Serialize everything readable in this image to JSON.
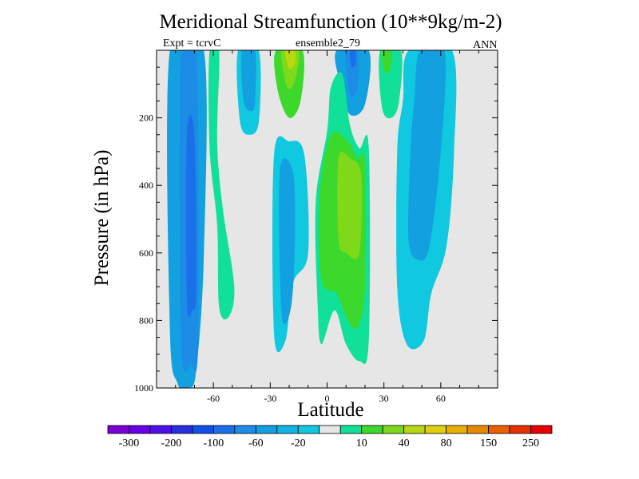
{
  "chart_data": {
    "type": "contour-fill",
    "title": "Meridional Streamfunction (10**9kg/m-2)",
    "left_label": "Expt = tcrvC",
    "center_label": "ensemble2_79",
    "right_label": "ANN",
    "xlabel": "Latitude",
    "ylabel": "Pressure (in hPa)",
    "xlim": [
      -90,
      90
    ],
    "ylim": [
      1000,
      0
    ],
    "x_ticks": [
      -60,
      -30,
      0,
      30,
      60
    ],
    "y_ticks": [
      200,
      400,
      600,
      800,
      1000
    ],
    "colorbar": {
      "labels": [
        "-300",
        "-200",
        "-100",
        "-60",
        "-20",
        "10",
        "40",
        "80",
        "150",
        "250"
      ],
      "colors": [
        "#7a00d6",
        "#6a00e6",
        "#4e10e8",
        "#2830e0",
        "#1250e8",
        "#1a70e8",
        "#1c8ce6",
        "#12a0e0",
        "#12b4e4",
        "#10c8e0",
        "#e6e6e6",
        "#10e098",
        "#3cd82c",
        "#80d81a",
        "#b8d810",
        "#e0d010",
        "#e8b000",
        "#e88a00",
        "#e86000",
        "#e83000",
        "#e60000"
      ]
    },
    "regions": [
      {
        "name": "sh-polar-cell",
        "level": "-60",
        "color": "#12a0e0",
        "points": [
          [
            -83,
            1
          ],
          [
            -83,
            820
          ],
          [
            -79,
            985
          ],
          [
            -73,
            1000
          ],
          [
            -69,
            945
          ],
          [
            -65,
            600
          ],
          [
            -65,
            1
          ]
        ]
      },
      {
        "name": "sh-polar-cell-core",
        "level": "-100",
        "color": "#1c8ce6",
        "points": [
          [
            -77,
            1
          ],
          [
            -77,
            860
          ],
          [
            -72,
            930
          ],
          [
            -68,
            860
          ],
          [
            -69,
            1
          ]
        ]
      },
      {
        "name": "sh-polar-cell-max",
        "level": "-150",
        "color": "#1a70e8",
        "points": [
          [
            -74,
            250
          ],
          [
            -74,
            740
          ],
          [
            -71,
            770
          ],
          [
            -69,
            700
          ],
          [
            -70,
            250
          ]
        ]
      },
      {
        "name": "sh-ferrel-cell",
        "level": "10",
        "color": "#10e098",
        "points": [
          [
            -62,
            1
          ],
          [
            -62,
            290
          ],
          [
            -58,
            520
          ],
          [
            -57,
            760
          ],
          [
            -52,
            790
          ],
          [
            -49,
            700
          ],
          [
            -55,
            470
          ],
          [
            -58,
            270
          ],
          [
            -57,
            1
          ]
        ]
      },
      {
        "name": "sh-upper-neg",
        "level": "-20",
        "color": "#10c8e0",
        "points": [
          [
            -47,
            1
          ],
          [
            -46,
            210
          ],
          [
            -41,
            250
          ],
          [
            -36,
            210
          ],
          [
            -36,
            1
          ]
        ]
      },
      {
        "name": "sh-upper-neg-core",
        "level": "-60",
        "color": "#12a0e0",
        "points": [
          [
            -45,
            1
          ],
          [
            -44,
            150
          ],
          [
            -40,
            180
          ],
          [
            -38,
            150
          ],
          [
            -38,
            1
          ]
        ]
      },
      {
        "name": "upper-pos-cell",
        "level": "40",
        "color": "#3cd82c",
        "points": [
          [
            -27,
            1
          ],
          [
            -26,
            120
          ],
          [
            -20,
            200
          ],
          [
            -14,
            150
          ],
          [
            -13,
            1
          ]
        ]
      },
      {
        "name": "upper-pos-cell-core",
        "level": "80",
        "color": "#80d81a",
        "points": [
          [
            -24,
            1
          ],
          [
            -21,
            110
          ],
          [
            -17,
            90
          ],
          [
            -15,
            1
          ]
        ]
      },
      {
        "name": "upper-pos-cell-max",
        "level": "150",
        "color": "#b8d810",
        "points": [
          [
            -22,
            1
          ],
          [
            -20,
            55
          ],
          [
            -17,
            40
          ],
          [
            -17,
            1
          ]
        ]
      },
      {
        "name": "tropical-neg-cell",
        "level": "-20",
        "color": "#10c8e0",
        "points": [
          [
            -28,
            310
          ],
          [
            -28,
            840
          ],
          [
            -22,
            860
          ],
          [
            -18,
            690
          ],
          [
            -10,
            600
          ],
          [
            -12,
            310
          ],
          [
            -20,
            270
          ]
        ]
      },
      {
        "name": "tropical-neg-cell-core",
        "level": "-60",
        "color": "#12a0e0",
        "points": [
          [
            -25,
            360
          ],
          [
            -24,
            780
          ],
          [
            -19,
            760
          ],
          [
            -17,
            560
          ],
          [
            -18,
            360
          ]
        ]
      },
      {
        "name": "nh-upper-neg",
        "level": "-60",
        "color": "#12a0e0",
        "points": [
          [
            5,
            1
          ],
          [
            7,
            100
          ],
          [
            12,
            190
          ],
          [
            20,
            160
          ],
          [
            22,
            1
          ]
        ]
      },
      {
        "name": "nh-upper-neg-core",
        "level": "-100",
        "color": "#1c8ce6",
        "points": [
          [
            10,
            1
          ],
          [
            12,
            130
          ],
          [
            16,
            110
          ],
          [
            16,
            1
          ]
        ]
      },
      {
        "name": "nh-upper-neg-max",
        "level": "-150",
        "color": "#1a70e8",
        "points": [
          [
            12,
            1
          ],
          [
            13,
            50
          ],
          [
            15,
            40
          ],
          [
            15,
            1
          ]
        ]
      },
      {
        "name": "nh-hadley-cell",
        "level": "10",
        "color": "#10e098",
        "points": [
          [
            0,
            240
          ],
          [
            -6,
            450
          ],
          [
            -5,
            750
          ],
          [
            -3,
            870
          ],
          [
            4,
            770
          ],
          [
            10,
            870
          ],
          [
            17,
            920
          ],
          [
            22,
            860
          ],
          [
            22,
            290
          ],
          [
            17,
            290
          ],
          [
            12,
            220
          ],
          [
            8,
            70
          ],
          [
            2,
            110
          ]
        ]
      },
      {
        "name": "nh-hadley-cell-core",
        "level": "40",
        "color": "#3cd82c",
        "points": [
          [
            2,
            250
          ],
          [
            -4,
            430
          ],
          [
            -3,
            680
          ],
          [
            5,
            720
          ],
          [
            11,
            800
          ],
          [
            16,
            820
          ],
          [
            20,
            700
          ],
          [
            20,
            330
          ],
          [
            16,
            320
          ],
          [
            11,
            270
          ]
        ]
      },
      {
        "name": "nh-hadley-cell-max",
        "level": "80",
        "color": "#80d81a",
        "points": [
          [
            6,
            320
          ],
          [
            6,
            560
          ],
          [
            10,
            600
          ],
          [
            17,
            600
          ],
          [
            18,
            370
          ],
          [
            12,
            320
          ]
        ]
      },
      {
        "name": "nh-upper-pos",
        "level": "10",
        "color": "#10e098",
        "points": [
          [
            28,
            1
          ],
          [
            29,
            170
          ],
          [
            34,
            200
          ],
          [
            38,
            150
          ],
          [
            39,
            1
          ]
        ]
      },
      {
        "name": "nh-upper-pos-core",
        "level": "40",
        "color": "#3cd82c",
        "points": [
          [
            29,
            1
          ],
          [
            30,
            60
          ],
          [
            33,
            60
          ],
          [
            34,
            1
          ]
        ]
      },
      {
        "name": "nh-ferrel-cell",
        "level": "-20",
        "color": "#10c8e0",
        "points": [
          [
            43,
            1
          ],
          [
            40,
            150
          ],
          [
            37,
            300
          ],
          [
            37,
            700
          ],
          [
            42,
            870
          ],
          [
            51,
            860
          ],
          [
            55,
            720
          ],
          [
            63,
            580
          ],
          [
            67,
            300
          ],
          [
            66,
            1
          ]
        ]
      },
      {
        "name": "nh-ferrel-cell-core",
        "level": "-60",
        "color": "#12a0e0",
        "points": [
          [
            49,
            1
          ],
          [
            46,
            150
          ],
          [
            44,
            300
          ],
          [
            43,
            560
          ],
          [
            48,
            620
          ],
          [
            54,
            580
          ],
          [
            60,
            300
          ],
          [
            62,
            1
          ]
        ]
      }
    ]
  }
}
